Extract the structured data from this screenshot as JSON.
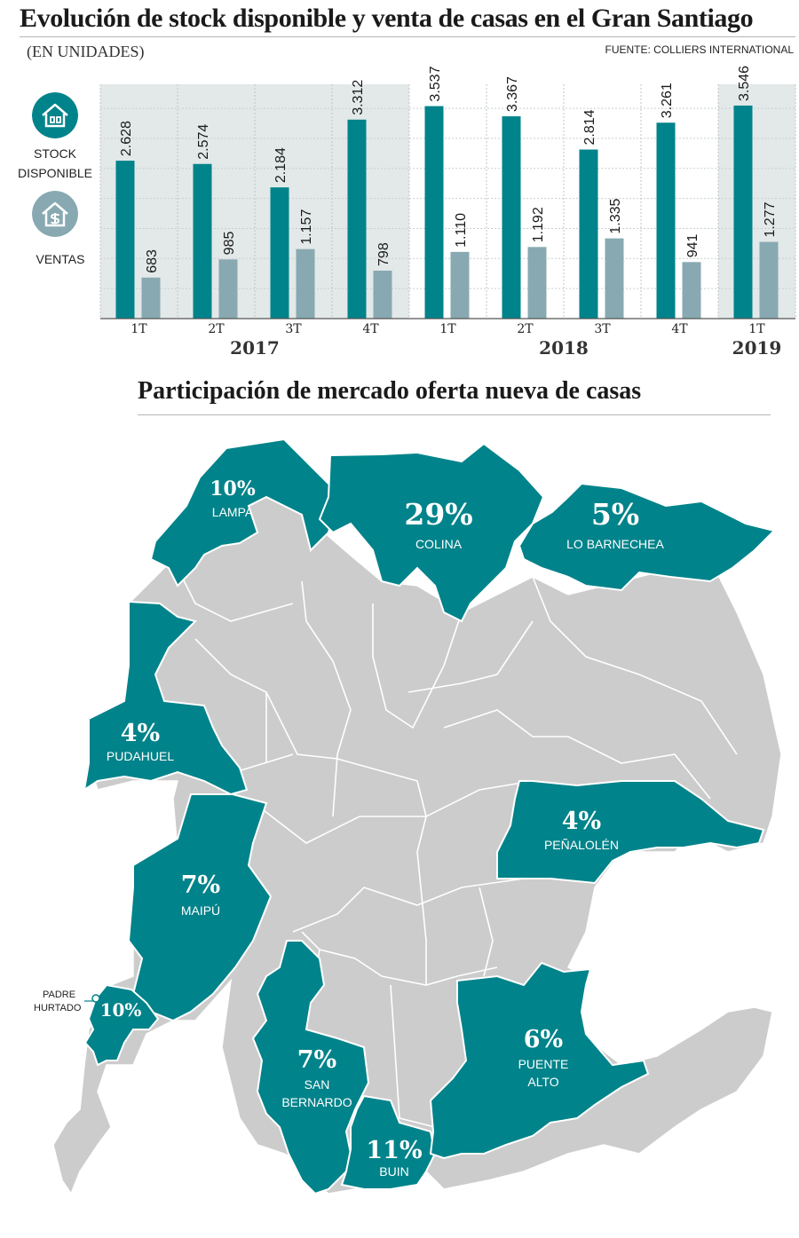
{
  "header": {
    "title": "Evolución de stock disponible y venta de casas en el Gran Santiago",
    "subtitle": "(EN UNIDADES)",
    "source": "FUENTE: COLLIERS INTERNATIONAL"
  },
  "legend": {
    "stock_label": "STOCK DISPONIBLE",
    "sales_label": "VENTAS",
    "stock_icon": "house-icon",
    "sales_icon": "house-dollar-icon"
  },
  "colors": {
    "stock": "#00838a",
    "sales": "#88a9b1",
    "highlight": "#00838a",
    "other_commune": "#cccccc",
    "panel_bg": "#e3e8e9"
  },
  "chart_data": {
    "type": "bar",
    "categories": [
      "1T",
      "2T",
      "3T",
      "4T",
      "1T",
      "2T",
      "3T",
      "4T",
      "1T"
    ],
    "years": [
      {
        "label": "2017",
        "quarters": [
          0,
          1,
          2,
          3
        ]
      },
      {
        "label": "2018",
        "quarters": [
          4,
          5,
          6,
          7
        ]
      },
      {
        "label": "2019",
        "quarters": [
          8
        ]
      }
    ],
    "series": [
      {
        "name": "STOCK DISPONIBLE",
        "values": [
          2628,
          2574,
          2184,
          3312,
          3537,
          3367,
          2814,
          3261,
          3546
        ],
        "labels": [
          "2.628",
          "2.574",
          "2.184",
          "3.312",
          "3.537",
          "3.367",
          "2.814",
          "3.261",
          "3.546"
        ]
      },
      {
        "name": "VENTAS",
        "values": [
          683,
          985,
          1157,
          798,
          1110,
          1192,
          1335,
          941,
          1277
        ],
        "labels": [
          "683",
          "985",
          "1.157",
          "798",
          "1.110",
          "1.192",
          "1.335",
          "941",
          "1.277"
        ]
      }
    ],
    "ylim": [
      0,
      3900
    ],
    "grid": true
  },
  "map": {
    "title": "Participación de mercado oferta nueva de casas",
    "communes": [
      {
        "id": "lampa",
        "name": "LAMPA",
        "pct": "10%"
      },
      {
        "id": "colina",
        "name": "COLINA",
        "pct": "29%"
      },
      {
        "id": "lo-barnechea",
        "name": "LO BARNECHEA",
        "pct": "5%"
      },
      {
        "id": "pudahuel",
        "name": "PUDAHUEL",
        "pct": "4%"
      },
      {
        "id": "penalolen",
        "name": "PEÑALOLÉN",
        "pct": "4%"
      },
      {
        "id": "maipu",
        "name": "MAIPÚ",
        "pct": "7%"
      },
      {
        "id": "padre-hurtado",
        "name": "PADRE HURTADO",
        "pct": "10%"
      },
      {
        "id": "san-bernardo",
        "name": "SAN BERNARDO",
        "pct": "7%"
      },
      {
        "id": "puente-alto",
        "name": "PUENTE ALTO",
        "pct": "6%"
      },
      {
        "id": "buin",
        "name": "BUIN",
        "pct": "11%"
      }
    ]
  }
}
